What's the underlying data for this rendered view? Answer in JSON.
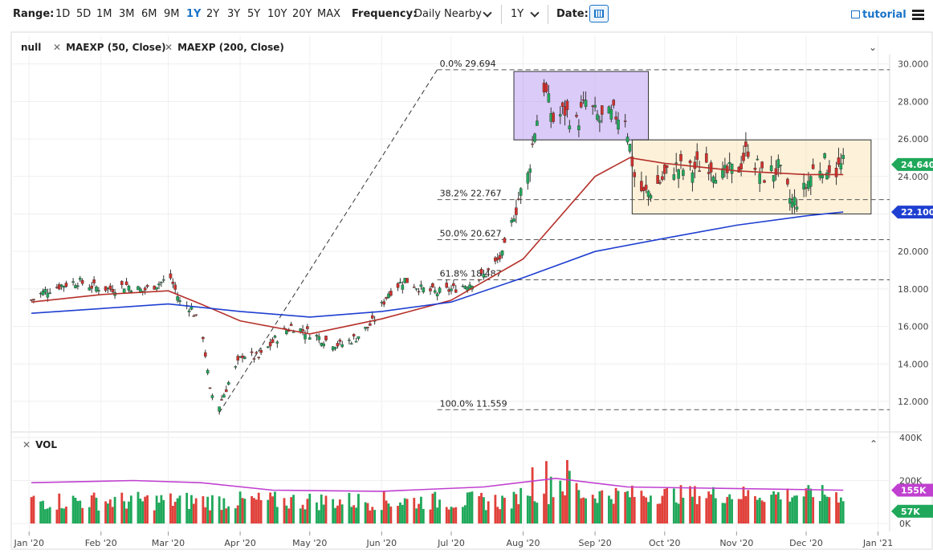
{
  "toolbar": {
    "range_label": "Range:",
    "ranges": [
      "1D",
      "5D",
      "1M",
      "3M",
      "6M",
      "9M",
      "1Y",
      "2Y",
      "3Y",
      "5Y",
      "10Y",
      "20Y",
      "MAX"
    ],
    "active_range": "1Y",
    "frequency_label": "Frequency:",
    "frequency_value": "Daily Nearby",
    "period_value": "1Y",
    "date_label": "Date:",
    "tutorial_label": "tutorial"
  },
  "legend": {
    "symbol": "null",
    "ma50": "MAEXP (50, Close)",
    "ma200": "MAEXP (200, Close)",
    "ma50_color": "#b5302a",
    "ma200_color": "#1f3fd1"
  },
  "volume": {
    "label": "VOL",
    "axis_ticks": [
      "400K",
      "200K",
      "0K"
    ],
    "badge_ma": "155K",
    "badge_vol": "57K",
    "ma_color": "#c040d0",
    "up_color": "#1fa85a",
    "down_color": "#e0403a"
  },
  "badges": {
    "last_price": "24.640",
    "ma200_value": "22.100",
    "last_color": "#1fa85a",
    "ma200_color": "#1f3fd1"
  },
  "fib_labels": [
    "0.0% 29.694",
    "38.2% 22.767",
    "50.0% 20.627",
    "61.8% 18.487",
    "100.0% 11.559"
  ],
  "chart_data": {
    "type": "candlestick",
    "y_ticks": [
      "30.000",
      "28.000",
      "26.000",
      "24.000",
      "22.000",
      "20.000",
      "18.000",
      "16.000",
      "14.000",
      "12.000"
    ],
    "ylim": [
      10.5,
      30.5
    ],
    "x_ticks": [
      "Jan '20",
      "Feb '20",
      "Mar '20",
      "Apr '20",
      "May '20",
      "Jun '20",
      "Jul '20",
      "Aug '20",
      "Sep '20",
      "Oct '20",
      "Nov '20",
      "Dec '20",
      "Jan '21"
    ],
    "fib_levels": [
      29.694,
      22.767,
      20.627,
      18.487,
      11.559
    ],
    "close_series": [
      [
        "2020-01-02",
        17.4
      ],
      [
        "2020-01-08",
        17.9
      ],
      [
        "2020-01-15",
        18.2
      ],
      [
        "2020-01-22",
        18.4
      ],
      [
        "2020-01-29",
        18.1
      ],
      [
        "2020-02-05",
        18.0
      ],
      [
        "2020-02-12",
        18.2
      ],
      [
        "2020-02-19",
        17.9
      ],
      [
        "2020-02-26",
        18.3
      ],
      [
        "2020-03-02",
        18.6
      ],
      [
        "2020-03-06",
        17.3
      ],
      [
        "2020-03-11",
        17.0
      ],
      [
        "2020-03-16",
        15.5
      ],
      [
        "2020-03-19",
        12.5
      ],
      [
        "2020-03-23",
        11.8
      ],
      [
        "2020-03-27",
        13.0
      ],
      [
        "2020-04-02",
        14.5
      ],
      [
        "2020-04-09",
        14.3
      ],
      [
        "2020-04-16",
        15.3
      ],
      [
        "2020-04-23",
        16.0
      ],
      [
        "2020-04-30",
        15.7
      ],
      [
        "2020-05-07",
        15.3
      ],
      [
        "2020-05-14",
        15.0
      ],
      [
        "2020-05-21",
        15.4
      ],
      [
        "2020-05-28",
        16.2
      ],
      [
        "2020-06-04",
        17.8
      ],
      [
        "2020-06-11",
        18.5
      ],
      [
        "2020-06-18",
        18.0
      ],
      [
        "2020-06-25",
        17.8
      ],
      [
        "2020-07-02",
        18.0
      ],
      [
        "2020-07-09",
        18.3
      ],
      [
        "2020-07-16",
        18.8
      ],
      [
        "2020-07-23",
        19.8
      ],
      [
        "2020-07-30",
        22.8
      ],
      [
        "2020-08-03",
        24.0
      ],
      [
        "2020-08-06",
        26.5
      ],
      [
        "2020-08-10",
        28.8
      ],
      [
        "2020-08-14",
        27.0
      ],
      [
        "2020-08-19",
        27.5
      ],
      [
        "2020-08-24",
        26.8
      ],
      [
        "2020-08-28",
        28.0
      ],
      [
        "2020-09-03",
        27.0
      ],
      [
        "2020-09-09",
        27.3
      ],
      [
        "2020-09-14",
        27.2
      ],
      [
        "2020-09-18",
        24.0
      ],
      [
        "2020-09-22",
        23.0
      ],
      [
        "2020-09-28",
        23.6
      ],
      [
        "2020-10-05",
        24.5
      ],
      [
        "2020-10-12",
        24.3
      ],
      [
        "2020-10-19",
        24.8
      ],
      [
        "2020-10-26",
        24.0
      ],
      [
        "2020-11-02",
        24.5
      ],
      [
        "2020-11-06",
        25.5
      ],
      [
        "2020-11-12",
        24.0
      ],
      [
        "2020-11-19",
        24.4
      ],
      [
        "2020-11-25",
        22.5
      ],
      [
        "2020-11-30",
        23.2
      ],
      [
        "2020-12-04",
        24.3
      ],
      [
        "2020-12-09",
        24.7
      ],
      [
        "2020-12-14",
        24.3
      ],
      [
        "2020-12-17",
        24.64
      ]
    ],
    "ma50_series": [
      [
        "2020-01-02",
        17.3
      ],
      [
        "2020-02-01",
        17.7
      ],
      [
        "2020-03-01",
        17.9
      ],
      [
        "2020-03-15",
        17.2
      ],
      [
        "2020-04-01",
        16.3
      ],
      [
        "2020-05-01",
        15.6
      ],
      [
        "2020-06-01",
        16.4
      ],
      [
        "2020-07-01",
        17.4
      ],
      [
        "2020-08-01",
        19.6
      ],
      [
        "2020-09-01",
        24.0
      ],
      [
        "2020-09-16",
        25.0
      ],
      [
        "2020-10-01",
        24.7
      ],
      [
        "2020-11-01",
        24.3
      ],
      [
        "2020-12-01",
        24.1
      ],
      [
        "2020-12-17",
        24.1
      ]
    ],
    "ma200_series": [
      [
        "2020-01-02",
        16.7
      ],
      [
        "2020-03-01",
        17.2
      ],
      [
        "2020-04-01",
        16.8
      ],
      [
        "2020-05-01",
        16.5
      ],
      [
        "2020-06-01",
        16.8
      ],
      [
        "2020-07-01",
        17.3
      ],
      [
        "2020-08-01",
        18.6
      ],
      [
        "2020-09-01",
        20.0
      ],
      [
        "2020-10-01",
        20.7
      ],
      [
        "2020-11-01",
        21.4
      ],
      [
        "2020-12-01",
        21.9
      ],
      [
        "2020-12-17",
        22.1
      ]
    ],
    "volume_ma_series": [
      [
        "2020-01-02",
        190
      ],
      [
        "2020-02-15",
        200
      ],
      [
        "2020-03-15",
        190
      ],
      [
        "2020-04-15",
        155
      ],
      [
        "2020-06-01",
        150
      ],
      [
        "2020-07-15",
        170
      ],
      [
        "2020-08-15",
        210
      ],
      [
        "2020-09-15",
        170
      ],
      [
        "2020-12-17",
        155
      ]
    ]
  }
}
